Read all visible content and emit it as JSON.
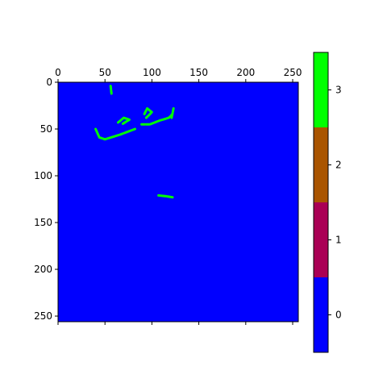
{
  "chart_data": {
    "type": "heatmap",
    "title": "",
    "xlabel": "",
    "ylabel": "",
    "x_range": [
      0,
      256
    ],
    "y_range": [
      0,
      256
    ],
    "x_ticks": [
      0,
      50,
      100,
      150,
      200,
      250
    ],
    "y_ticks": [
      0,
      50,
      100,
      150,
      200,
      250
    ],
    "x_tick_position": "top",
    "background_value": 0,
    "segments": [
      {
        "value": 3,
        "points": [
          [
            56,
            4
          ],
          [
            57,
            13
          ]
        ]
      },
      {
        "value": 3,
        "points": [
          [
            40,
            50
          ],
          [
            44,
            59
          ],
          [
            50,
            61
          ],
          [
            66,
            56
          ],
          [
            82,
            50
          ]
        ]
      },
      {
        "value": 3,
        "points": [
          [
            64,
            43
          ],
          [
            70,
            38
          ],
          [
            76,
            40
          ],
          [
            68,
            45
          ]
        ]
      },
      {
        "value": 3,
        "points": [
          [
            92,
            34
          ],
          [
            95,
            28
          ],
          [
            100,
            32
          ],
          [
            94,
            38
          ]
        ]
      },
      {
        "value": 3,
        "points": [
          [
            89,
            45
          ],
          [
            98,
            45
          ],
          [
            108,
            41
          ],
          [
            118,
            38
          ],
          [
            121,
            35
          ]
        ]
      },
      {
        "value": 3,
        "points": [
          [
            123,
            28
          ],
          [
            121,
            38
          ]
        ]
      },
      {
        "value": 3,
        "points": [
          [
            107,
            121
          ],
          [
            116,
            122
          ],
          [
            122,
            123
          ]
        ]
      }
    ],
    "colorbar": {
      "ticks": [
        0,
        1,
        2,
        3
      ],
      "range": [
        -0.5,
        3.5
      ],
      "colors": [
        "#0000ff",
        "#aa0055",
        "#aa5500",
        "#00ff00"
      ]
    },
    "grid": false
  }
}
